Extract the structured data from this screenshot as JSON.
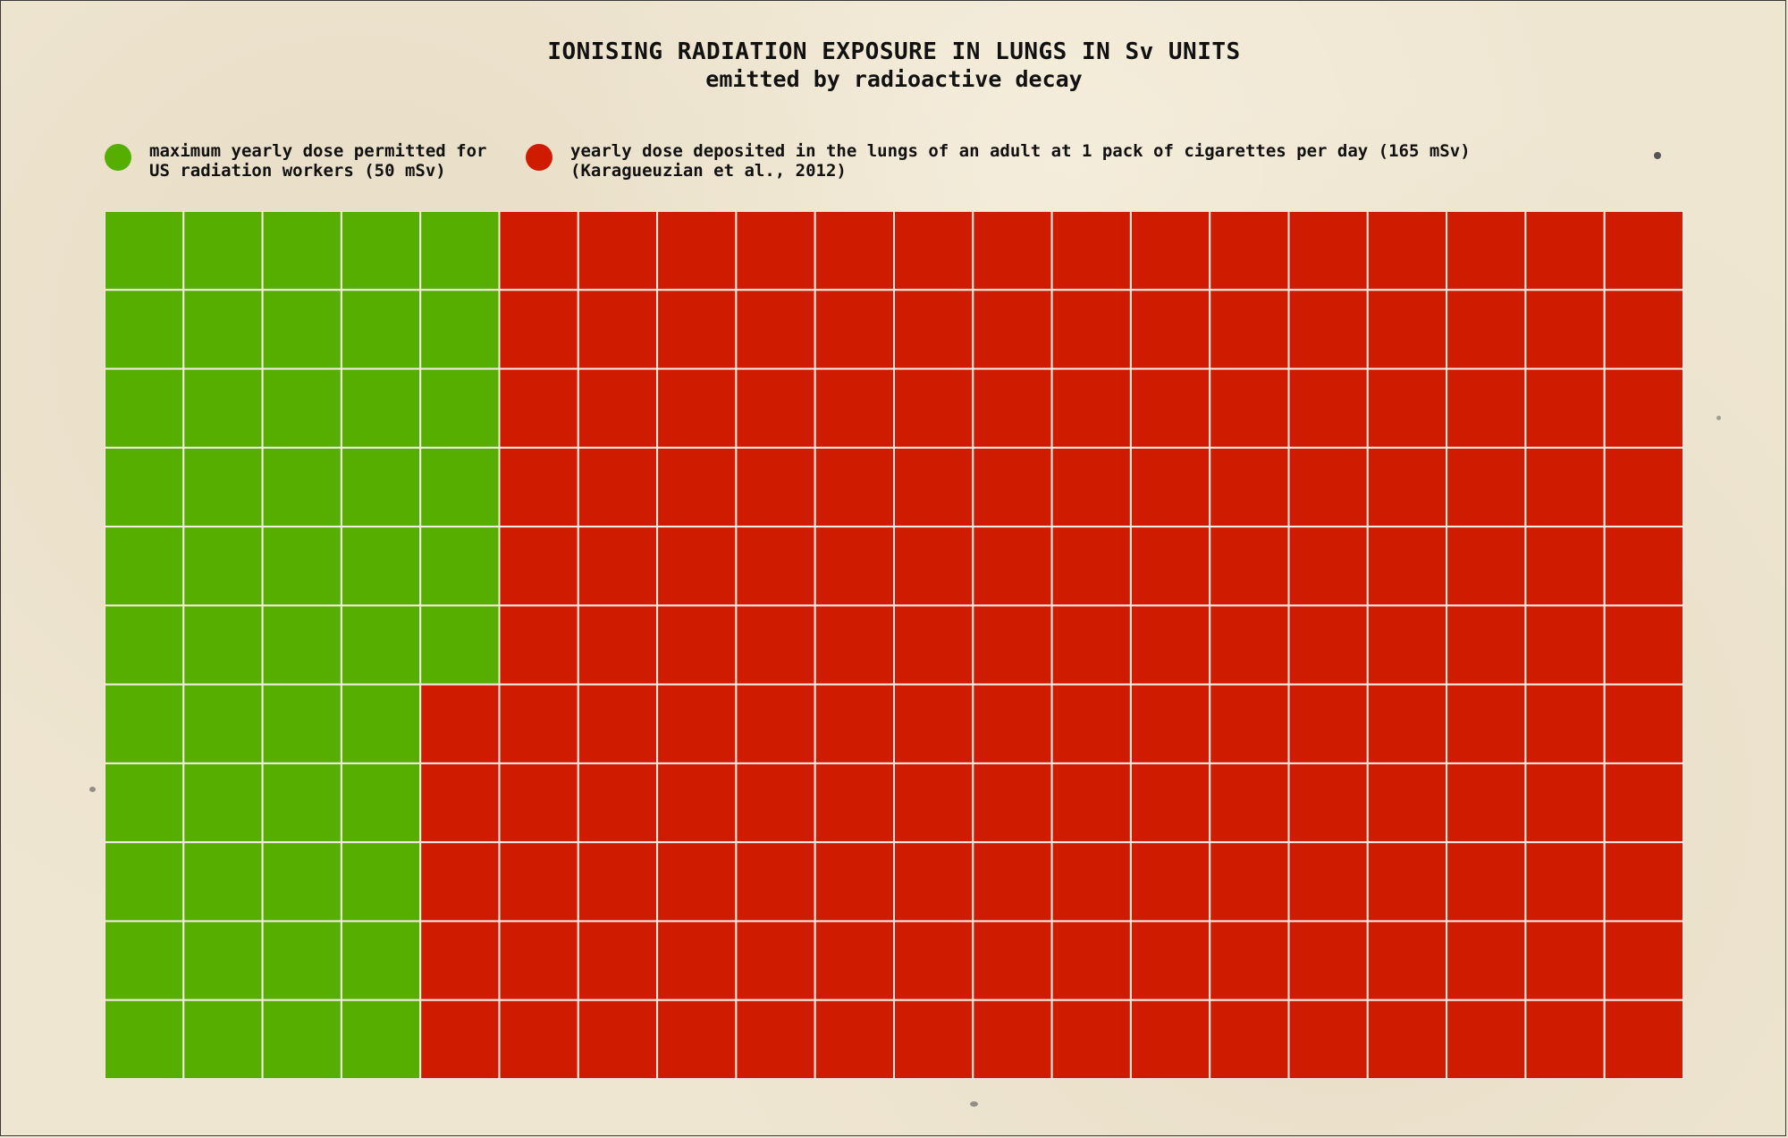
{
  "chart_data": {
    "type": "waffle",
    "title": "IONISING RADIATION EXPOSURE IN LUNGS IN Sv UNITS",
    "subtitle": "emitted by radioactive decay",
    "grid": {
      "rows": 11,
      "cols": 20,
      "fill_order": "column-major"
    },
    "unit_per_cell": "1 mSv",
    "series": [
      {
        "name_lines": [
          "maximum yearly dose permitted for",
          "US radiation workers (50 mSv)"
        ],
        "value": 50,
        "color": "#55ae00"
      },
      {
        "name_lines": [
          "yearly dose deposited in the lungs of an adult at 1 pack of cigarettes per day (165 mSv)",
          "(Karagueuzian et al., 2012)"
        ],
        "value": 165,
        "color": "#cf1b00"
      }
    ],
    "total": 215,
    "background_color": "#efe6d2",
    "gridline_color": "#f3ece2"
  }
}
